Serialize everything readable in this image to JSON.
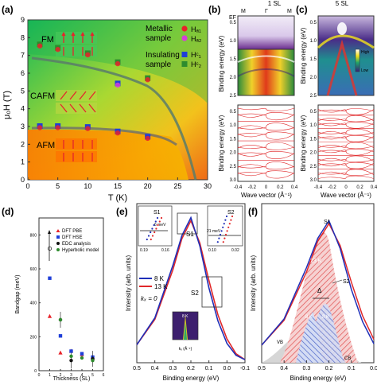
{
  "panels": {
    "a": {
      "letter": "(a)",
      "phase_labels": [
        "FM",
        "CAFM",
        "AFM"
      ],
      "legend_metallic": [
        "Metallic",
        "sample"
      ],
      "legend_insulating": [
        "Insulating",
        "sample"
      ],
      "legend_keys": [
        "Hₐ₁",
        "Hₐ₂",
        "Hᶜ₁",
        "Hᶜ₂"
      ],
      "xlabel": "T (K)",
      "ylabel": "μ₀H (T)",
      "colors": {
        "metallic1": "#e8232a",
        "metallic2": "#d83fd8",
        "insulating1": "#1f3fd8",
        "insulating2": "#2e8b2e"
      }
    },
    "b": {
      "letter": "(b)",
      "title": "1 SL",
      "top_label": "Binding energy (eV)",
      "bottom_label": "Binding energy (eV)",
      "xlabel": "Wave vector (Å⁻¹)",
      "ef": "EF",
      "m_left": "M",
      "gamma": "Γ",
      "m_right": "M"
    },
    "c": {
      "letter": "(c)",
      "title": "5 SL",
      "ylabel": "Binding energy (eV)",
      "xlabel": "Wave vector (Å⁻¹)",
      "scale_high": "High",
      "scale_low": "Low"
    },
    "d": {
      "letter": "(d)",
      "xlabel": "Thickness (SL)",
      "ylabel": "Bandgap (meV)",
      "legend": [
        "DFT PBE",
        "DFT HSE",
        "EDC analysis",
        "Hyperbolic model"
      ]
    },
    "e": {
      "letter": "(e)",
      "xlabel": "Binding energy (eV)",
      "ylabel": "Intensity (arb. units)",
      "legend": [
        "8 K",
        "13 K"
      ],
      "k_label": "kₓ = 0",
      "s1": "S1",
      "s2": "S2",
      "inset_s1_label": "S1",
      "inset_s1_value": "6 meV",
      "inset_s2_label": "S2",
      "inset_s2_value": "21 meV",
      "inset_bottom_label": "8 K",
      "inset_bottom_xlabel": "kₓ (Å⁻¹)"
    },
    "f": {
      "letter": "(f)",
      "xlabel": "Binding energy (eV)",
      "ylabel": "Intensity (arb. units)",
      "s1": "S1",
      "s2": "S2",
      "delta": "Δ",
      "label_13k": "13 K",
      "label_8k_left": "8 K",
      "label_8k_right": "8 K",
      "vb": "VB",
      "cb": "CB"
    }
  },
  "chart_data": [
    {
      "panel": "a",
      "type": "scatter",
      "xlim": [
        0,
        30
      ],
      "ylim": [
        0,
        9
      ],
      "xticks": [
        0,
        5,
        10,
        15,
        20,
        25,
        30
      ],
      "yticks": [
        0,
        1,
        2,
        3,
        4,
        5,
        6,
        7,
        8,
        9
      ],
      "series": [
        {
          "name": "FM boundary",
          "x": [
            2,
            5,
            10,
            15,
            20,
            25
          ],
          "y": [
            7.6,
            7.4,
            7.1,
            6.6,
            5.7,
            0.0
          ]
        },
        {
          "name": "CAFM-AFM",
          "x": [
            2,
            5,
            10,
            15,
            20
          ],
          "y": [
            3.0,
            3.0,
            2.95,
            2.7,
            2.4
          ]
        },
        {
          "name": "spin-flop",
          "x": [
            15
          ],
          "y": [
            5.4
          ]
        }
      ]
    },
    {
      "panel": "d",
      "type": "scatter",
      "xlim": [
        0,
        6
      ],
      "ylim": [
        0,
        900
      ],
      "xticks": [
        0,
        1,
        2,
        3,
        4,
        5,
        6
      ],
      "yticks": [
        0,
        200,
        400,
        600,
        800
      ],
      "series": [
        {
          "name": "DFT PBE",
          "x": [
            1,
            2,
            3,
            4,
            5
          ],
          "y": [
            320,
            105,
            115,
            95,
            75
          ]
        },
        {
          "name": "DFT HSE",
          "x": [
            1,
            2,
            3,
            4,
            5
          ],
          "y": [
            545,
            205,
            115,
            100,
            80
          ]
        },
        {
          "name": "EDC analysis",
          "x": [
            2,
            3,
            5
          ],
          "y": [
            300,
            60,
            70
          ]
        },
        {
          "name": "Hyperbolic model",
          "x": [
            1,
            2,
            3,
            4,
            5
          ],
          "y": [
            720,
            300,
            85,
            75,
            60
          ]
        }
      ]
    },
    {
      "panel": "e",
      "type": "line",
      "xlim": [
        0.5,
        -0.1
      ],
      "xticks": [
        0.5,
        0.4,
        0.3,
        0.2,
        0.1,
        0.0,
        -0.1
      ],
      "series": [
        {
          "name": "8 K",
          "x": [
            0.5,
            0.4,
            0.3,
            0.25,
            0.2,
            0.15,
            0.1,
            0.05,
            0.0,
            -0.05,
            -0.1
          ],
          "y": [
            0.12,
            0.3,
            0.65,
            0.85,
            0.97,
            0.78,
            0.5,
            0.28,
            0.13,
            0.05,
            0.02
          ]
        },
        {
          "name": "13 K",
          "x": [
            0.5,
            0.4,
            0.3,
            0.25,
            0.2,
            0.15,
            0.1,
            0.05,
            0.0,
            -0.05,
            -0.1
          ],
          "y": [
            0.12,
            0.29,
            0.62,
            0.83,
            0.95,
            0.8,
            0.55,
            0.32,
            0.16,
            0.06,
            0.02
          ]
        }
      ]
    },
    {
      "panel": "f",
      "type": "area",
      "xlim": [
        0.5,
        0.0
      ],
      "xticks": [
        0.5,
        0.4,
        0.3,
        0.2,
        0.1,
        0.0
      ]
    }
  ]
}
